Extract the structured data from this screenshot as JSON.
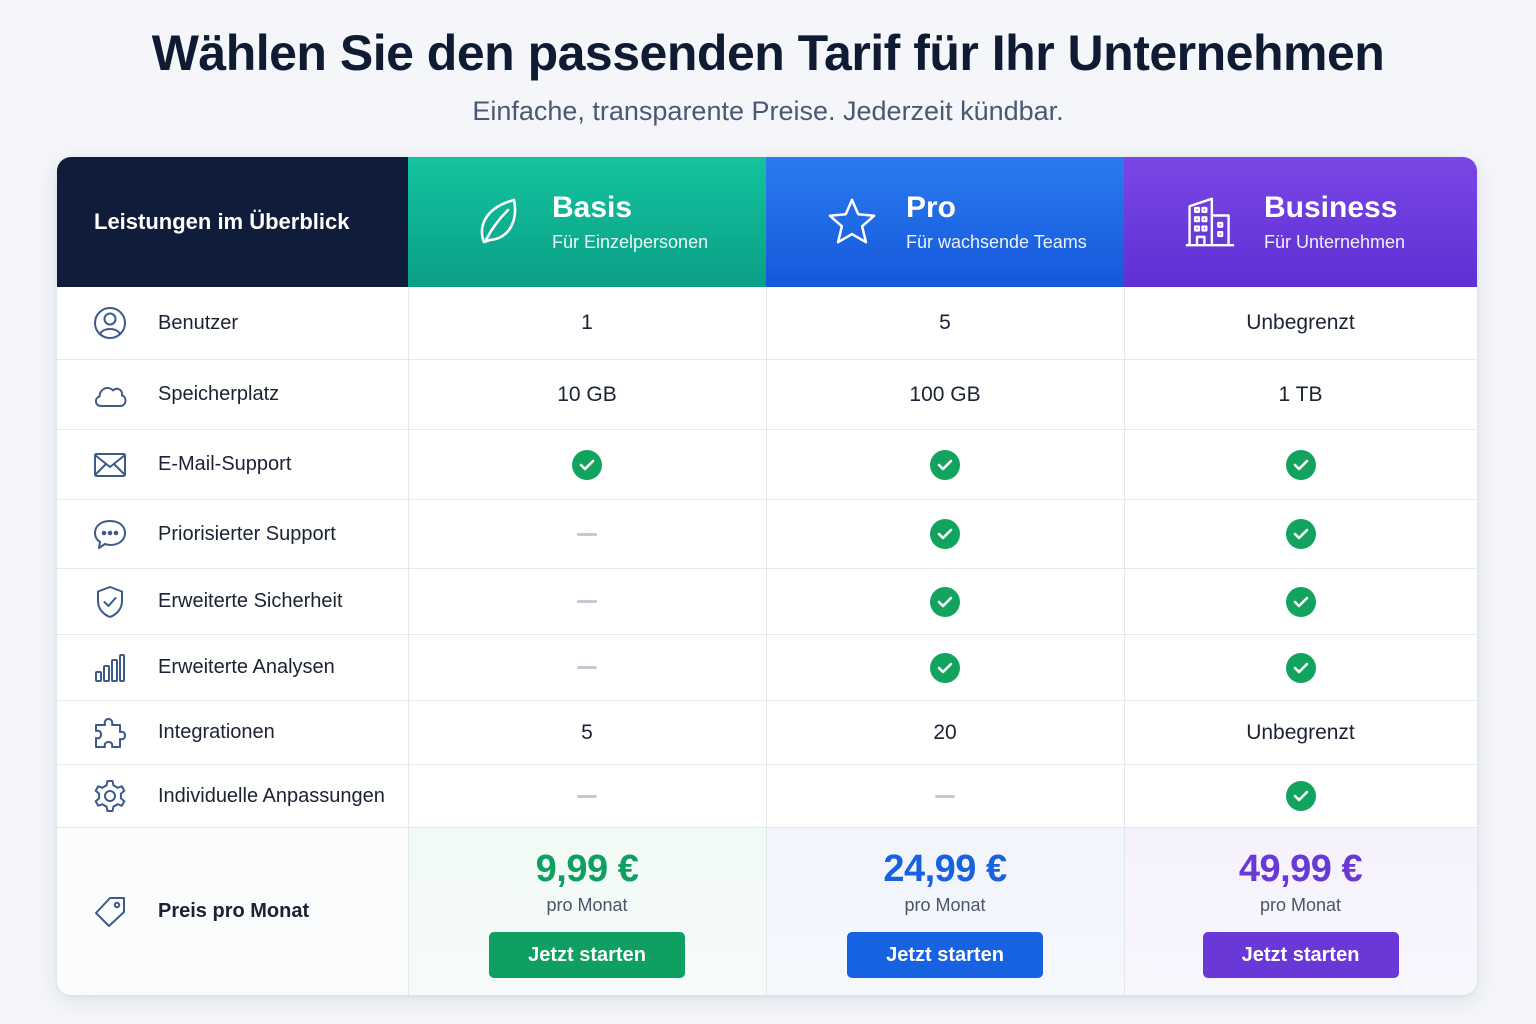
{
  "header": {
    "title": "Wählen Sie den passenden Tarif für Ihr Unternehmen",
    "subtitle": "Einfache, transparente Preise. Jederzeit kündbar."
  },
  "table": {
    "feature_header": "Leistungen im Überblick",
    "plans": [
      {
        "name": "Basis",
        "description": "Für Einzelpersonen",
        "icon": "leaf-icon",
        "color": "#0a9f86"
      },
      {
        "name": "Pro",
        "description": "Für wachsende Teams",
        "icon": "star-icon",
        "color": "#1558db"
      },
      {
        "name": "Business",
        "description": "Für Unternehmen",
        "icon": "building-icon",
        "color": "#6a38d6"
      }
    ],
    "rows": [
      {
        "label": "Benutzer",
        "icon": "user-icon",
        "values": [
          "1",
          "5",
          "Unbegrenzt"
        ]
      },
      {
        "label": "Speicherplatz",
        "icon": "cloud-icon",
        "values": [
          "10 GB",
          "100 GB",
          "1 TB"
        ]
      },
      {
        "label": "E-Mail-Support",
        "icon": "mail-icon",
        "values": [
          "check",
          "check",
          "check"
        ]
      },
      {
        "label": "Priorisierter Support",
        "icon": "chat-icon",
        "values": [
          "dash",
          "check",
          "check"
        ]
      },
      {
        "label": "Erweiterte Sicherheit",
        "icon": "shield-icon",
        "values": [
          "dash",
          "check",
          "check"
        ]
      },
      {
        "label": "Erweiterte Analysen",
        "icon": "bar-chart-icon",
        "values": [
          "dash",
          "check",
          "check"
        ]
      },
      {
        "label": "Integrationen",
        "icon": "puzzle-icon",
        "values": [
          "5",
          "20",
          "Unbegrenzt"
        ]
      },
      {
        "label": "Individuelle Anpassungen",
        "icon": "gear-icon",
        "values": [
          "dash",
          "dash",
          "check"
        ]
      }
    ],
    "price_row": {
      "label": "Preis pro Monat",
      "icon": "tag-icon",
      "prices": [
        {
          "value": "9,99 €",
          "sub": "pro Monat",
          "button": "Jetzt starten",
          "color": "#0f9f60"
        },
        {
          "value": "24,99 €",
          "sub": "pro Monat",
          "button": "Jetzt starten",
          "color": "#1662e0"
        },
        {
          "value": "49,99 €",
          "sub": "pro Monat",
          "button": "Jetzt starten",
          "color": "#6a38d6"
        }
      ]
    }
  }
}
